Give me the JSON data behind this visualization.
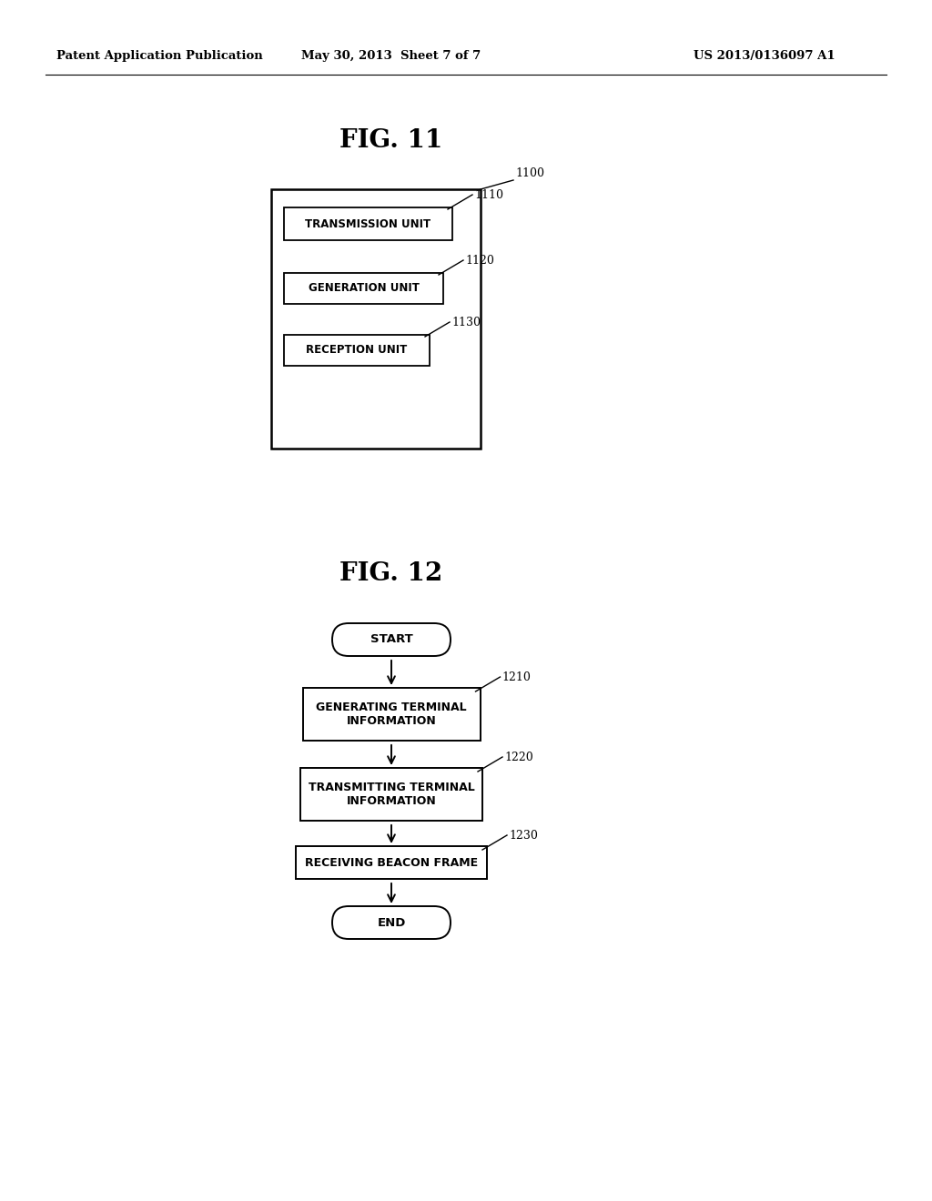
{
  "bg_color": "#ffffff",
  "header_left": "Patent Application Publication",
  "header_mid": "May 30, 2013  Sheet 7 of 7",
  "header_right": "US 2013/0136097 A1",
  "fig11_title": "FIG. 11",
  "fig12_title": "FIG. 12",
  "fig11_outer_label": "1100",
  "fig11_boxes": [
    {
      "label": "TRANSMISSION UNIT",
      "ref": "1110"
    },
    {
      "label": "GENERATION UNIT",
      "ref": "1120"
    },
    {
      "label": "RECEPTION UNIT",
      "ref": "1130"
    }
  ],
  "fig12_start": "START",
  "fig12_end": "END",
  "fig12_steps": [
    {
      "label": "GENERATING TERMINAL\nINFORMATION",
      "ref": "1210"
    },
    {
      "label": "TRANSMITTING TERMINAL\nINFORMATION",
      "ref": "1220"
    },
    {
      "label": "RECEIVING BEACON FRAME",
      "ref": "1230"
    }
  ]
}
